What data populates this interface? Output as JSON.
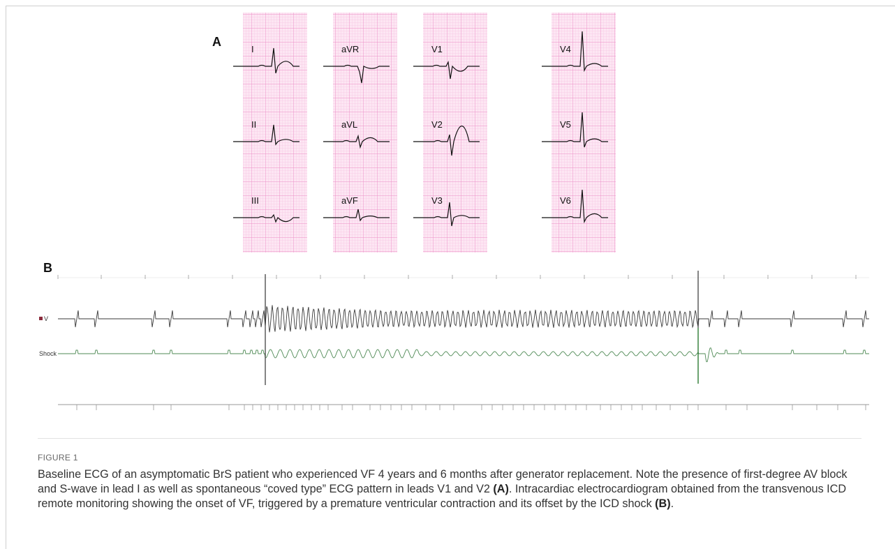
{
  "panel_a": {
    "label": "A",
    "leads": [
      [
        "I",
        "II",
        "III"
      ],
      [
        "aVR",
        "aVL",
        "aVF"
      ],
      [
        "V1",
        "V2",
        "V3"
      ],
      [
        "V4",
        "V5",
        "V6"
      ]
    ]
  },
  "panel_b": {
    "label": "B",
    "channels": [
      "V",
      "Shock"
    ]
  },
  "figure_number": "FIGURE 1",
  "caption": {
    "text_1": "Baseline ECG of an asymptomatic BrS patient who experienced VF 4 years and 6 months after generator replacement. Note the presence of first-degree AV block and S-wave in lead I as well as spontaneous “coved type” ECG pattern in leads V1 and V2 ",
    "ref_a": "(A)",
    "text_2": ". Intracardiac electrocardiogram obtained from the transvenous ICD remote monitoring showing the onset of VF, triggered by a premature ventricular contraction and its offset by the ICD shock ",
    "ref_b": "(B)",
    "text_3": "."
  }
}
